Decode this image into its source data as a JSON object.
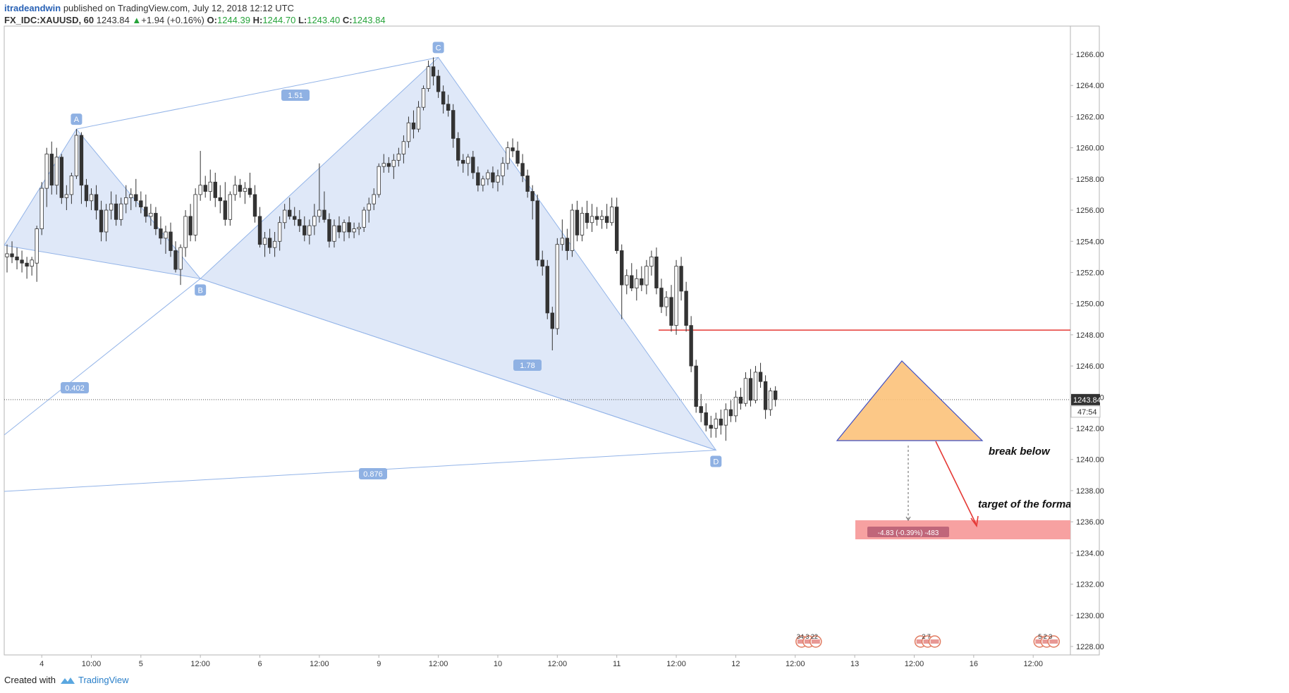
{
  "header": {
    "author": "itradeandwin",
    "published": "published on TradingView.com, July 12, 2018 12:12 UTC",
    "symbol": "FX_IDC:XAUUSD, 60",
    "last": "1243.84",
    "change_arrow": "▲",
    "change": "+1.94 (+0.16%)",
    "o_label": "O:",
    "o_value": "1244.39",
    "h_label": "H:",
    "h_value": "1244.70",
    "l_label": "L:",
    "l_value": "1243.40",
    "c_label": "C:",
    "c_value": "1243.84"
  },
  "footer": {
    "created_with": "Created with",
    "brand": "TradingView"
  },
  "chart_data": {
    "type": "candlestick",
    "symbol": "FX_IDC:XAUUSD",
    "interval": "60",
    "ylim": [
      1227.2,
      1267.6
    ],
    "y_ticks": [
      "1266.00",
      "1264.00",
      "1262.00",
      "1260.00",
      "1258.00",
      "1256.00",
      "1254.00",
      "1252.00",
      "1250.00",
      "1248.00",
      "1246.00",
      "1244.00",
      "1242.00",
      "1240.00",
      "1238.00",
      "1236.00",
      "1234.00",
      "1232.00",
      "1230.00",
      "1228.00"
    ],
    "x_ticks": [
      {
        "label": "4",
        "idx": 7
      },
      {
        "label": "10:00",
        "idx": 17
      },
      {
        "label": "5",
        "idx": 27
      },
      {
        "label": "12:00",
        "idx": 39
      },
      {
        "label": "6",
        "idx": 51
      },
      {
        "label": "12:00",
        "idx": 63
      },
      {
        "label": "9",
        "idx": 75
      },
      {
        "label": "12:00",
        "idx": 87
      },
      {
        "label": "10",
        "idx": 99
      },
      {
        "label": "12:00",
        "idx": 111
      },
      {
        "label": "11",
        "idx": 123
      },
      {
        "label": "12:00",
        "idx": 135
      },
      {
        "label": "12",
        "idx": 147
      },
      {
        "label": "12:00",
        "idx": 159
      },
      {
        "label": "13",
        "idx": 171
      },
      {
        "label": "12:00",
        "idx": 183
      },
      {
        "label": "16",
        "idx": 195
      },
      {
        "label": "12:00",
        "idx": 207
      }
    ],
    "candles": [
      [
        1253.0,
        1253.8,
        1252.0,
        1253.2
      ],
      [
        1253.2,
        1254.0,
        1252.6,
        1253.0
      ],
      [
        1253.0,
        1253.6,
        1252.2,
        1252.8
      ],
      [
        1252.8,
        1253.4,
        1252.0,
        1252.6
      ],
      [
        1252.6,
        1253.0,
        1251.6,
        1252.4
      ],
      [
        1252.4,
        1253.0,
        1251.8,
        1252.8
      ],
      [
        1252.6,
        1255.0,
        1251.4,
        1254.8
      ],
      [
        1254.8,
        1257.8,
        1254.4,
        1257.4
      ],
      [
        1257.4,
        1260.0,
        1256.2,
        1259.6
      ],
      [
        1259.6,
        1260.4,
        1257.0,
        1257.6
      ],
      [
        1257.6,
        1260.0,
        1257.0,
        1259.4
      ],
      [
        1259.4,
        1259.6,
        1256.4,
        1256.8
      ],
      [
        1256.8,
        1257.6,
        1256.0,
        1257.0
      ],
      [
        1257.0,
        1258.4,
        1256.4,
        1258.2
      ],
      [
        1258.2,
        1261.2,
        1258.0,
        1260.8
      ],
      [
        1260.8,
        1261.0,
        1256.4,
        1257.6
      ],
      [
        1257.6,
        1258.0,
        1256.2,
        1256.6
      ],
      [
        1256.6,
        1257.4,
        1256.0,
        1257.0
      ],
      [
        1257.0,
        1257.6,
        1255.4,
        1256.0
      ],
      [
        1256.0,
        1256.6,
        1254.0,
        1254.6
      ],
      [
        1254.6,
        1256.4,
        1254.0,
        1256.0
      ],
      [
        1256.0,
        1257.2,
        1255.4,
        1256.4
      ],
      [
        1256.4,
        1257.0,
        1255.0,
        1255.4
      ],
      [
        1255.4,
        1256.8,
        1255.0,
        1256.4
      ],
      [
        1256.4,
        1257.6,
        1255.8,
        1256.8
      ],
      [
        1256.8,
        1257.4,
        1256.0,
        1257.0
      ],
      [
        1257.0,
        1258.0,
        1256.2,
        1256.6
      ],
      [
        1256.6,
        1257.2,
        1255.8,
        1256.2
      ],
      [
        1256.2,
        1257.0,
        1255.2,
        1255.6
      ],
      [
        1255.6,
        1256.4,
        1255.0,
        1255.8
      ],
      [
        1255.8,
        1256.2,
        1254.4,
        1254.8
      ],
      [
        1254.8,
        1255.6,
        1253.8,
        1254.2
      ],
      [
        1254.2,
        1255.0,
        1253.2,
        1254.6
      ],
      [
        1254.6,
        1255.2,
        1253.0,
        1253.4
      ],
      [
        1253.4,
        1254.0,
        1252.0,
        1252.2
      ],
      [
        1252.2,
        1253.8,
        1251.2,
        1253.6
      ],
      [
        1253.6,
        1256.0,
        1253.0,
        1255.6
      ],
      [
        1255.6,
        1256.4,
        1254.0,
        1254.4
      ],
      [
        1254.4,
        1257.4,
        1254.0,
        1257.0
      ],
      [
        1257.0,
        1259.8,
        1256.6,
        1257.6
      ],
      [
        1257.6,
        1258.2,
        1256.8,
        1257.2
      ],
      [
        1257.2,
        1258.6,
        1256.6,
        1257.8
      ],
      [
        1257.8,
        1258.4,
        1256.2,
        1256.8
      ],
      [
        1256.8,
        1257.6,
        1255.8,
        1256.6
      ],
      [
        1256.6,
        1257.8,
        1255.0,
        1255.4
      ],
      [
        1255.4,
        1257.2,
        1255.0,
        1257.0
      ],
      [
        1257.0,
        1258.2,
        1256.6,
        1257.6
      ],
      [
        1257.6,
        1258.0,
        1256.8,
        1257.2
      ],
      [
        1257.2,
        1257.8,
        1256.4,
        1257.4
      ],
      [
        1257.4,
        1258.4,
        1256.8,
        1257.0
      ],
      [
        1257.0,
        1257.6,
        1255.2,
        1255.6
      ],
      [
        1255.6,
        1256.2,
        1253.6,
        1253.8
      ],
      [
        1253.8,
        1254.6,
        1253.0,
        1254.2
      ],
      [
        1254.2,
        1254.8,
        1253.2,
        1253.6
      ],
      [
        1253.6,
        1254.6,
        1253.0,
        1254.0
      ],
      [
        1254.0,
        1255.6,
        1253.4,
        1255.2
      ],
      [
        1255.2,
        1256.4,
        1254.8,
        1256.0
      ],
      [
        1256.0,
        1256.8,
        1255.4,
        1255.6
      ],
      [
        1255.6,
        1256.2,
        1255.0,
        1255.4
      ],
      [
        1255.4,
        1256.0,
        1254.6,
        1255.0
      ],
      [
        1255.0,
        1255.6,
        1254.0,
        1254.4
      ],
      [
        1254.4,
        1255.4,
        1253.8,
        1255.0
      ],
      [
        1255.0,
        1256.4,
        1254.4,
        1255.6
      ],
      [
        1255.6,
        1259.0,
        1255.2,
        1256.0
      ],
      [
        1256.0,
        1257.2,
        1255.2,
        1255.4
      ],
      [
        1255.4,
        1255.8,
        1253.6,
        1254.0
      ],
      [
        1254.0,
        1255.4,
        1253.6,
        1255.0
      ],
      [
        1255.0,
        1255.6,
        1254.2,
        1254.6
      ],
      [
        1254.6,
        1255.4,
        1254.0,
        1255.2
      ],
      [
        1255.2,
        1255.6,
        1254.2,
        1254.6
      ],
      [
        1254.6,
        1255.2,
        1254.2,
        1254.8
      ],
      [
        1254.8,
        1255.2,
        1254.4,
        1254.9
      ],
      [
        1254.9,
        1256.2,
        1254.6,
        1256.0
      ],
      [
        1256.0,
        1256.8,
        1255.2,
        1256.4
      ],
      [
        1256.4,
        1257.4,
        1256.0,
        1257.0
      ],
      [
        1257.0,
        1259.0,
        1256.8,
        1258.8
      ],
      [
        1258.8,
        1259.6,
        1258.4,
        1259.0
      ],
      [
        1259.0,
        1259.4,
        1258.4,
        1258.8
      ],
      [
        1258.8,
        1259.6,
        1258.0,
        1259.2
      ],
      [
        1259.2,
        1260.0,
        1258.8,
        1259.6
      ],
      [
        1259.6,
        1260.8,
        1259.0,
        1260.4
      ],
      [
        1260.4,
        1262.0,
        1260.0,
        1261.6
      ],
      [
        1261.6,
        1262.4,
        1260.6,
        1261.2
      ],
      [
        1261.2,
        1263.0,
        1261.0,
        1262.6
      ],
      [
        1262.6,
        1264.0,
        1262.4,
        1263.8
      ],
      [
        1263.8,
        1265.6,
        1263.6,
        1265.2
      ],
      [
        1265.2,
        1265.8,
        1264.0,
        1264.6
      ],
      [
        1264.6,
        1265.0,
        1263.2,
        1263.6
      ],
      [
        1263.6,
        1264.0,
        1262.2,
        1262.8
      ],
      [
        1262.8,
        1263.4,
        1262.0,
        1262.4
      ],
      [
        1262.4,
        1262.8,
        1260.0,
        1260.6
      ],
      [
        1260.6,
        1261.0,
        1258.8,
        1259.2
      ],
      [
        1259.2,
        1259.6,
        1258.4,
        1259.0
      ],
      [
        1259.0,
        1259.6,
        1258.2,
        1259.4
      ],
      [
        1259.4,
        1259.8,
        1258.0,
        1258.4
      ],
      [
        1258.4,
        1258.8,
        1257.2,
        1257.6
      ],
      [
        1257.6,
        1258.2,
        1257.2,
        1258.0
      ],
      [
        1258.0,
        1258.6,
        1257.6,
        1258.4
      ],
      [
        1258.4,
        1258.8,
        1257.4,
        1257.8
      ],
      [
        1257.8,
        1258.6,
        1257.2,
        1258.2
      ],
      [
        1258.2,
        1259.4,
        1257.6,
        1259.0
      ],
      [
        1259.0,
        1260.4,
        1258.6,
        1260.0
      ],
      [
        1260.0,
        1260.6,
        1259.4,
        1259.8
      ],
      [
        1259.8,
        1260.4,
        1258.8,
        1259.0
      ],
      [
        1259.0,
        1259.6,
        1257.8,
        1258.2
      ],
      [
        1258.2,
        1258.6,
        1256.8,
        1257.2
      ],
      [
        1257.2,
        1257.6,
        1255.4,
        1256.6
      ],
      [
        1256.6,
        1257.0,
        1252.4,
        1252.8
      ],
      [
        1252.8,
        1253.4,
        1251.8,
        1252.4
      ],
      [
        1252.4,
        1252.8,
        1249.0,
        1249.4
      ],
      [
        1249.4,
        1249.8,
        1247.0,
        1248.4
      ],
      [
        1248.4,
        1254.2,
        1248.0,
        1253.8
      ],
      [
        1253.8,
        1255.4,
        1253.4,
        1254.2
      ],
      [
        1254.2,
        1254.8,
        1252.8,
        1253.4
      ],
      [
        1253.4,
        1256.4,
        1253.0,
        1256.0
      ],
      [
        1256.0,
        1256.6,
        1254.0,
        1254.4
      ],
      [
        1254.4,
        1256.2,
        1254.0,
        1255.8
      ],
      [
        1255.8,
        1256.6,
        1254.8,
        1255.2
      ],
      [
        1255.2,
        1256.4,
        1254.6,
        1255.6
      ],
      [
        1255.6,
        1256.2,
        1255.0,
        1255.4
      ],
      [
        1255.4,
        1256.0,
        1254.8,
        1255.6
      ],
      [
        1255.6,
        1256.4,
        1254.8,
        1255.2
      ],
      [
        1255.2,
        1256.8,
        1255.0,
        1256.2
      ],
      [
        1256.2,
        1256.8,
        1253.2,
        1253.4
      ],
      [
        1253.4,
        1253.8,
        1249.0,
        1251.2
      ],
      [
        1251.2,
        1252.2,
        1250.6,
        1251.8
      ],
      [
        1251.8,
        1252.6,
        1250.8,
        1251.0
      ],
      [
        1251.0,
        1252.2,
        1250.2,
        1251.6
      ],
      [
        1251.6,
        1252.4,
        1250.8,
        1251.2
      ],
      [
        1251.2,
        1252.8,
        1250.6,
        1252.4
      ],
      [
        1252.4,
        1253.4,
        1251.8,
        1253.0
      ],
      [
        1253.0,
        1253.6,
        1250.6,
        1251.0
      ],
      [
        1251.0,
        1251.6,
        1249.4,
        1249.8
      ],
      [
        1249.8,
        1250.8,
        1249.2,
        1250.4
      ],
      [
        1250.4,
        1251.2,
        1248.2,
        1248.6
      ],
      [
        1248.6,
        1252.8,
        1248.0,
        1252.4
      ],
      [
        1252.4,
        1253.0,
        1250.2,
        1250.8
      ],
      [
        1250.8,
        1251.4,
        1248.2,
        1248.6
      ],
      [
        1248.6,
        1249.2,
        1245.6,
        1246.0
      ],
      [
        1246.0,
        1246.4,
        1243.0,
        1243.4
      ],
      [
        1243.4,
        1244.2,
        1242.4,
        1243.0
      ],
      [
        1243.0,
        1243.6,
        1241.8,
        1242.2
      ],
      [
        1242.2,
        1242.8,
        1241.4,
        1242.0
      ],
      [
        1242.0,
        1243.0,
        1241.4,
        1242.6
      ],
      [
        1242.6,
        1243.2,
        1241.6,
        1242.2
      ],
      [
        1242.2,
        1243.6,
        1241.2,
        1243.2
      ],
      [
        1243.2,
        1243.8,
        1242.4,
        1242.8
      ],
      [
        1242.8,
        1244.4,
        1242.4,
        1244.0
      ],
      [
        1244.0,
        1244.6,
        1243.2,
        1243.6
      ],
      [
        1243.6,
        1245.6,
        1243.4,
        1245.2
      ],
      [
        1245.2,
        1245.8,
        1243.4,
        1243.8
      ],
      [
        1243.8,
        1246.0,
        1243.6,
        1245.6
      ],
      [
        1245.6,
        1246.2,
        1244.6,
        1245.0
      ],
      [
        1245.0,
        1245.4,
        1242.6,
        1243.2
      ],
      [
        1243.2,
        1244.6,
        1242.8,
        1244.4
      ],
      [
        1244.4,
        1244.7,
        1243.4,
        1243.84
      ]
    ],
    "harmonic_pattern": {
      "points": [
        {
          "label": "A",
          "idx": 14,
          "price": 1261.2
        },
        {
          "label": "B",
          "idx": 39,
          "price": 1251.6
        },
        {
          "label": "C",
          "idx": 87,
          "price": 1265.8
        },
        {
          "label": "D",
          "idx": 143,
          "price": 1240.6
        }
      ],
      "ratios": [
        "1.51",
        "0.402",
        "1.78",
        "0.876"
      ]
    },
    "horizontal_line_price": 1248.3,
    "current_price_label": "1243.84",
    "countdown_label": "47:54",
    "annotations": [
      "break below",
      "target of the formation"
    ],
    "measure_label": "-4.83 (-0.39%) -483",
    "event_markers": [
      {
        "idx": 162,
        "label": "34",
        "extra": "3",
        "tail": "22"
      },
      {
        "idx": 186,
        "label": "2",
        "tail": "7"
      },
      {
        "idx": 210,
        "label": "5",
        "extra": "2",
        "tail": "3"
      }
    ],
    "colors": {
      "bull": "#ffffff",
      "bear": "#333333",
      "pattern_fill": "#dce6f7",
      "pattern_line": "#93b4e8",
      "triangle_fill": "#fcc27a",
      "triangle_line": "#3f4ec2",
      "red": "#e53935",
      "target_box": "#f7a1a1",
      "measure_label_bg": "#c0667a"
    }
  }
}
